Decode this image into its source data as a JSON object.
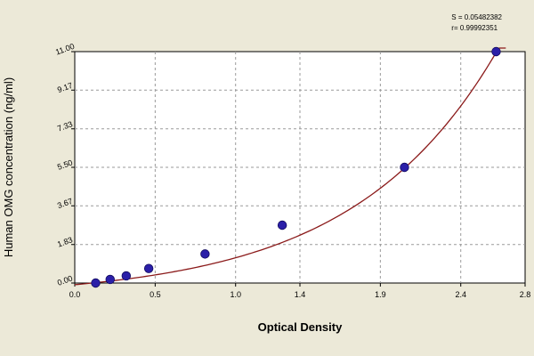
{
  "stats": {
    "s": "S = 0.05482382",
    "r": "r= 0.99992351"
  },
  "chart_data": {
    "type": "scatter",
    "title": "",
    "xlabel": "Optical Density",
    "ylabel": "Human  OMG concentration (ng/ml)",
    "xlim": [
      0.0,
      2.8
    ],
    "ylim": [
      0.0,
      11.0
    ],
    "xticks": [
      0.0,
      0.5,
      1.0,
      1.4,
      1.9,
      2.4,
      2.8
    ],
    "xtick_labels": [
      "0.0",
      "0.5",
      "1.0",
      "1.4",
      "1.9",
      "2.4",
      "2.8"
    ],
    "yticks": [
      0.0,
      1.83,
      3.67,
      5.5,
      7.33,
      9.17,
      11.0
    ],
    "ytick_labels": [
      "0.00",
      "1.83",
      "3.67",
      "5.50",
      "7.33",
      "9.17",
      "11.00"
    ],
    "grid": true,
    "series": [
      {
        "name": "",
        "points": [
          {
            "x": 0.13,
            "y": 0.0
          },
          {
            "x": 0.22,
            "y": 0.17
          },
          {
            "x": 0.32,
            "y": 0.34
          },
          {
            "x": 0.46,
            "y": 0.69
          },
          {
            "x": 0.81,
            "y": 1.38
          },
          {
            "x": 1.29,
            "y": 2.75
          },
          {
            "x": 2.05,
            "y": 5.5
          },
          {
            "x": 2.62,
            "y": 11.0
          }
        ],
        "marker_color": "#2b1fa8"
      }
    ],
    "fit_curve": {
      "type": "exponential",
      "a": 0.62,
      "b": 1.12,
      "c": -0.7,
      "color": "#8b1a1a"
    }
  }
}
